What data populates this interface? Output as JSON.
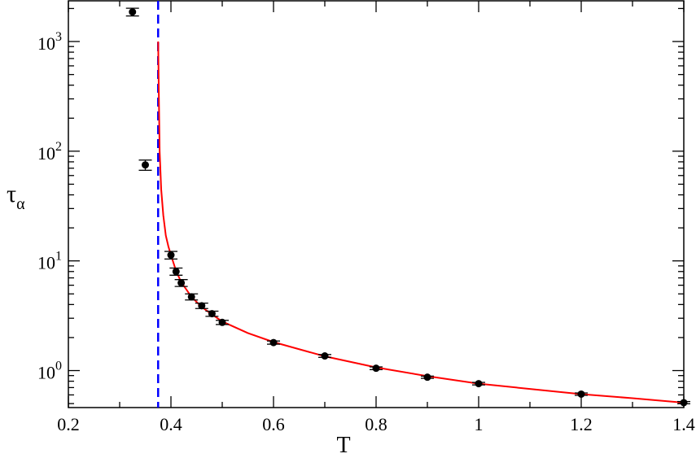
{
  "chart_data": {
    "type": "scatter",
    "xlabel": "T",
    "ylabel": "τ",
    "ylabel_subscript": "α",
    "xlim": [
      0.2,
      1.4
    ],
    "ylim": [
      0.46,
      2350
    ],
    "yscale": "log",
    "grid": false,
    "xticks": [
      0.2,
      0.4,
      0.6,
      0.8,
      1,
      1.2,
      1.4
    ],
    "xtick_labels": [
      "0.2",
      "0.4",
      "0.6",
      "0.8",
      "1",
      "1.2",
      "1.4"
    ],
    "yticks": [
      1,
      10,
      100,
      1000
    ],
    "ytick_labels": [
      {
        "base": "10",
        "exp": "0"
      },
      {
        "base": "10",
        "exp": "1"
      },
      {
        "base": "10",
        "exp": "2"
      },
      {
        "base": "10",
        "exp": "3"
      }
    ],
    "points": {
      "color": "#000000",
      "x": [
        0.325,
        0.35,
        0.4,
        0.41,
        0.42,
        0.44,
        0.46,
        0.48,
        0.5,
        0.6,
        0.7,
        0.8,
        0.9,
        1.0,
        1.2,
        1.4
      ],
      "y": [
        1860,
        75,
        11.3,
        8.0,
        6.3,
        4.7,
        3.9,
        3.3,
        2.75,
        1.8,
        1.36,
        1.05,
        0.87,
        0.76,
        0.61,
        0.51
      ],
      "yerr": [
        150,
        8,
        0.9,
        0.6,
        0.45,
        0.3,
        0.22,
        0.18,
        0.12,
        0.06,
        0.04,
        0.03,
        0.02,
        0.02,
        0.015,
        0.012
      ]
    },
    "fit_curve": {
      "color": "#ff0000",
      "x": [
        0.375,
        0.3765,
        0.378,
        0.381,
        0.385,
        0.39,
        0.395,
        0.4,
        0.41,
        0.42,
        0.44,
        0.46,
        0.48,
        0.5,
        0.55,
        0.6,
        0.7,
        0.8,
        0.9,
        1.0,
        1.1,
        1.2,
        1.3,
        1.4
      ],
      "y": [
        1000,
        300,
        100,
        45,
        26,
        17,
        13.5,
        11.3,
        8.1,
        6.4,
        4.7,
        3.8,
        3.25,
        2.8,
        2.2,
        1.82,
        1.35,
        1.07,
        0.89,
        0.76,
        0.68,
        0.61,
        0.56,
        0.51
      ]
    },
    "vertical_line": {
      "x": 0.375,
      "color": "#0000ff",
      "style": "dashed"
    }
  }
}
